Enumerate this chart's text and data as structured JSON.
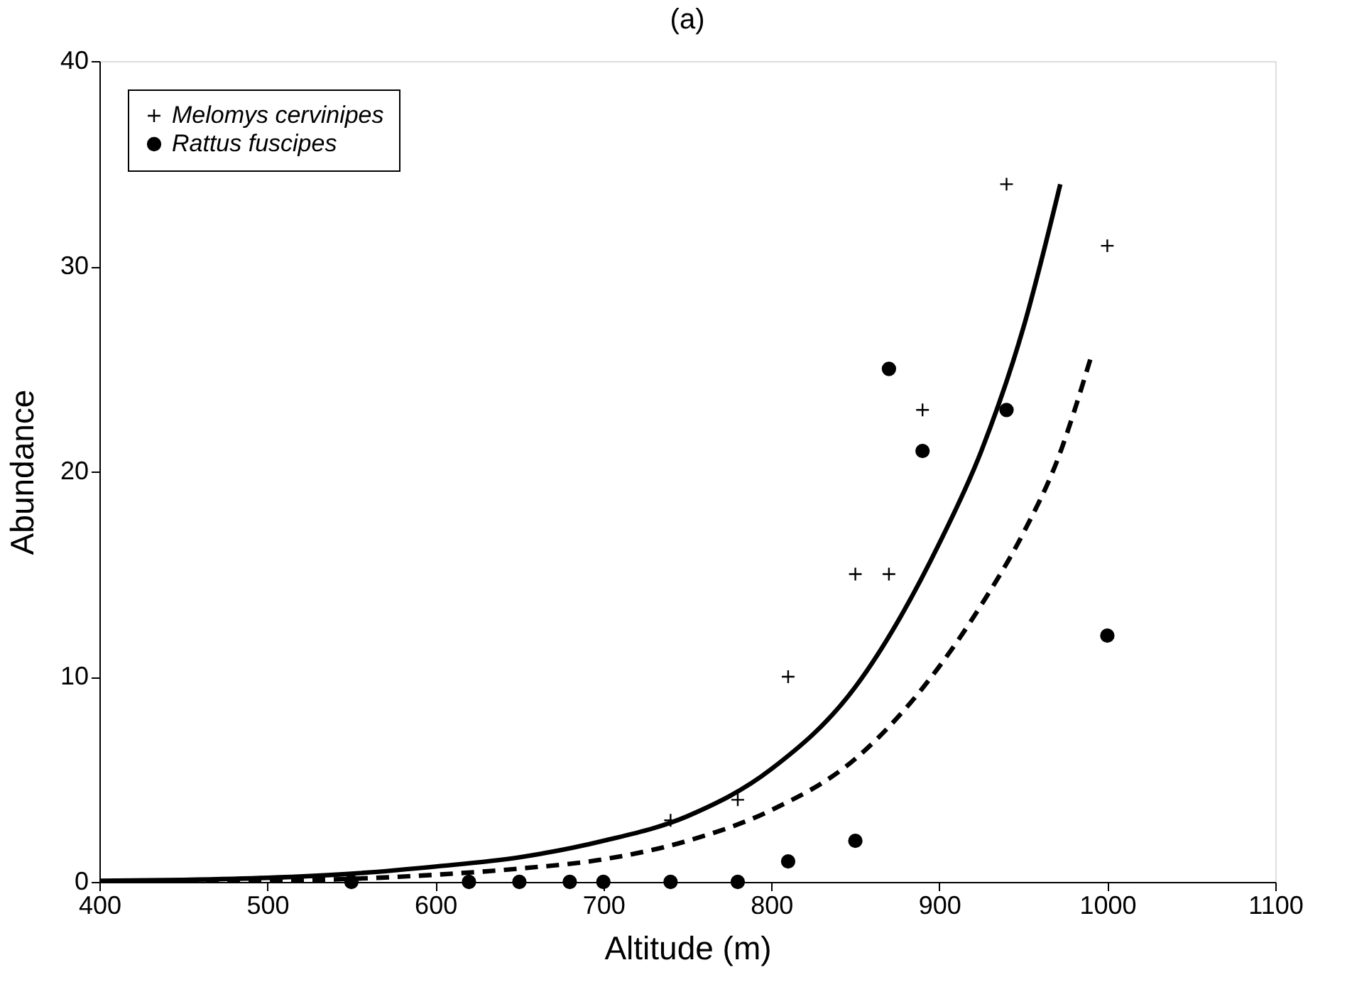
{
  "chart_data": {
    "type": "scatter",
    "title": "(a)",
    "xlabel": "Altitude (m)",
    "ylabel": "Abundance",
    "xlim": [
      400,
      1100
    ],
    "xticks": [
      400,
      500,
      600,
      700,
      800,
      900,
      1000,
      1100
    ],
    "ylim": [
      0,
      40
    ],
    "yticks": [
      0,
      10,
      20,
      30,
      40
    ],
    "grid": false,
    "legend": "top left",
    "series": [
      {
        "name": "Melomys cervinipes",
        "color": "#000000",
        "type": "scatter",
        "marker": "cross",
        "x": [
          740,
          780,
          810,
          850,
          870,
          890,
          940,
          1000
        ],
        "values": [
          3,
          4,
          10,
          15,
          15,
          23,
          34,
          31
        ]
      },
      {
        "name": "Rattus fuscipes",
        "color": "#000000",
        "type": "scatter",
        "marker": "circle",
        "x": [
          550,
          620,
          650,
          680,
          700,
          740,
          780,
          810,
          850,
          870,
          890,
          940,
          1000
        ],
        "values": [
          0,
          0,
          0,
          0,
          0,
          0,
          0,
          1,
          2,
          25,
          21,
          23,
          12
        ]
      },
      {
        "color": "#000000",
        "type": "line",
        "line_style": "solid",
        "x": [
          400,
          450,
          500,
          550,
          600,
          650,
          700,
          750,
          800,
          850,
          900,
          925,
          950,
          972
        ],
        "values": [
          0.05,
          0.1,
          0.2,
          0.4,
          0.75,
          1.2,
          2.0,
          3.2,
          5.5,
          9.5,
          16.5,
          21,
          27,
          34
        ]
      },
      {
        "color": "#000000",
        "type": "line",
        "line_style": "dashed",
        "x": [
          400,
          500,
          550,
          600,
          650,
          700,
          750,
          800,
          850,
          900,
          925,
          950,
          970,
          990
        ],
        "values": [
          0.0,
          0.05,
          0.15,
          0.35,
          0.65,
          1.1,
          2.0,
          3.5,
          6.0,
          10.5,
          13.5,
          17,
          20.5,
          25.5
        ]
      }
    ]
  }
}
